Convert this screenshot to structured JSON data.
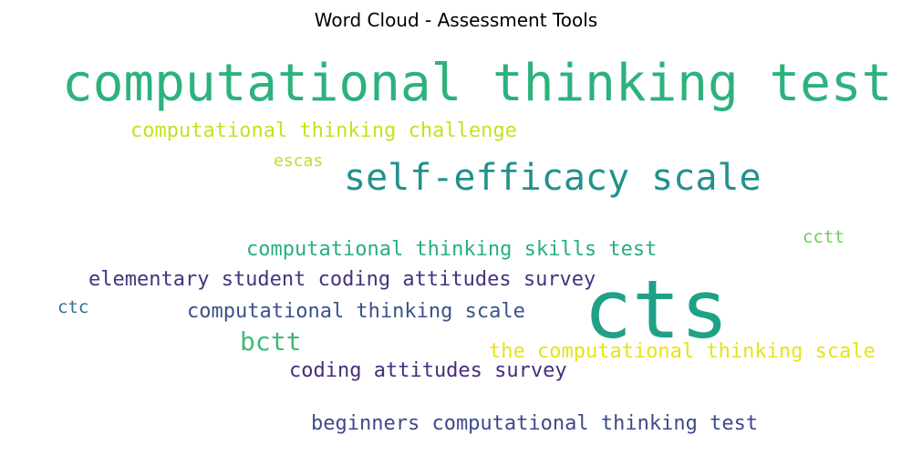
{
  "chart_data": {
    "type": "wordcloud",
    "title": "Word Cloud - Assessment Tools",
    "words": [
      {
        "text": "computational thinking test",
        "weight": 10,
        "color": "#2db27d"
      },
      {
        "text": "cts",
        "weight": 10,
        "color": "#1fa187"
      },
      {
        "text": "self-efficacy scale",
        "weight": 5,
        "color": "#21918c"
      },
      {
        "text": "computational thinking challenge",
        "weight": 2,
        "color": "#c8e020"
      },
      {
        "text": "escas",
        "weight": 2,
        "color": "#bddf26"
      },
      {
        "text": "computational thinking skills test",
        "weight": 2,
        "color": "#28ae80"
      },
      {
        "text": "cctt",
        "weight": 2,
        "color": "#6ccd5a"
      },
      {
        "text": "elementary student coding attitudes survey",
        "weight": 2,
        "color": "#46327e"
      },
      {
        "text": "ctc",
        "weight": 2,
        "color": "#2c728e"
      },
      {
        "text": "computational thinking scale",
        "weight": 2,
        "color": "#3b528b"
      },
      {
        "text": "bctt",
        "weight": 3,
        "color": "#3dbc74"
      },
      {
        "text": "the computational thinking scale",
        "weight": 2,
        "color": "#e5e419"
      },
      {
        "text": "coding attitudes survey",
        "weight": 2,
        "color": "#472d7b"
      },
      {
        "text": "beginners computational thinking test",
        "weight": 2,
        "color": "#3e4a89"
      }
    ]
  }
}
